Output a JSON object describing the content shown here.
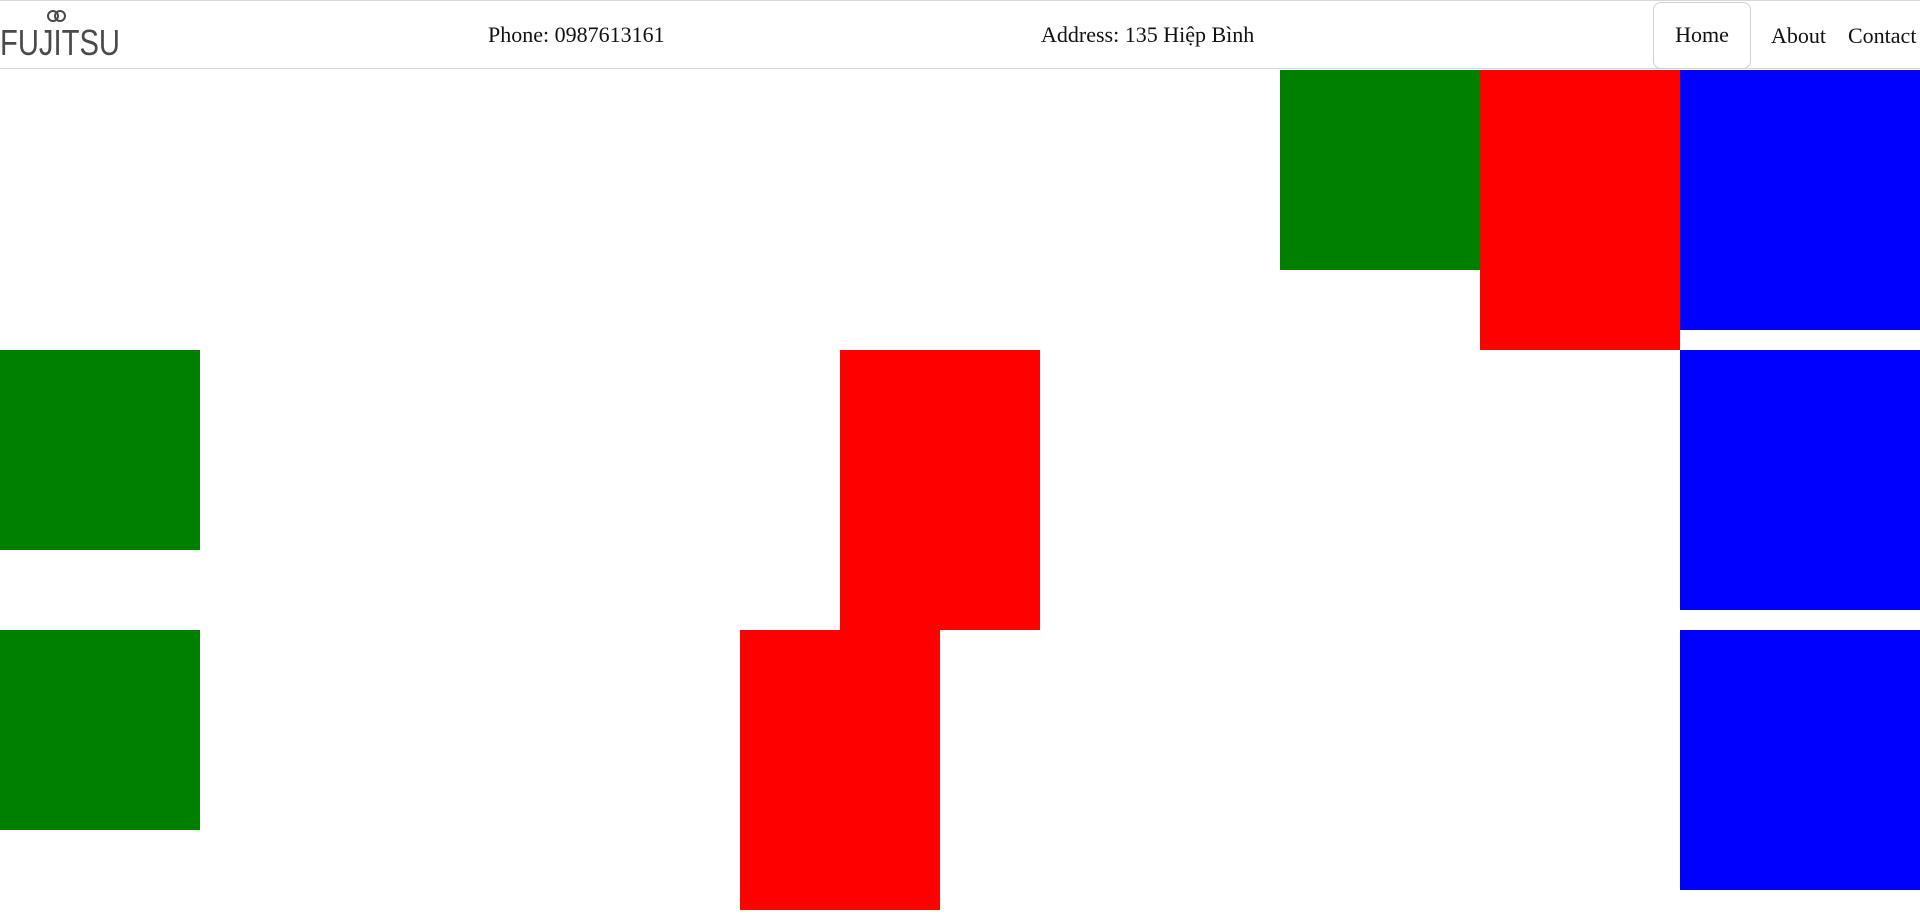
{
  "header": {
    "logo_text": "FUJITSU",
    "phone": "Phone: 0987613161",
    "address": "Address: 135 Hiệp Bình"
  },
  "nav": {
    "home": "Home",
    "about": "About",
    "contact": "Contact",
    "active": "Home"
  },
  "colors": {
    "green": "#008000",
    "red": "#ff0000",
    "blue": "#0000ff"
  },
  "blocks": [
    {
      "name": "green-block",
      "color": "green"
    },
    {
      "name": "red-block",
      "color": "red"
    },
    {
      "name": "blue-block",
      "color": "blue"
    },
    {
      "name": "green-block",
      "color": "green"
    },
    {
      "name": "red-block",
      "color": "red"
    },
    {
      "name": "blue-block",
      "color": "blue"
    },
    {
      "name": "green-block",
      "color": "green"
    },
    {
      "name": "red-block",
      "color": "red"
    },
    {
      "name": "blue-block",
      "color": "blue"
    }
  ]
}
